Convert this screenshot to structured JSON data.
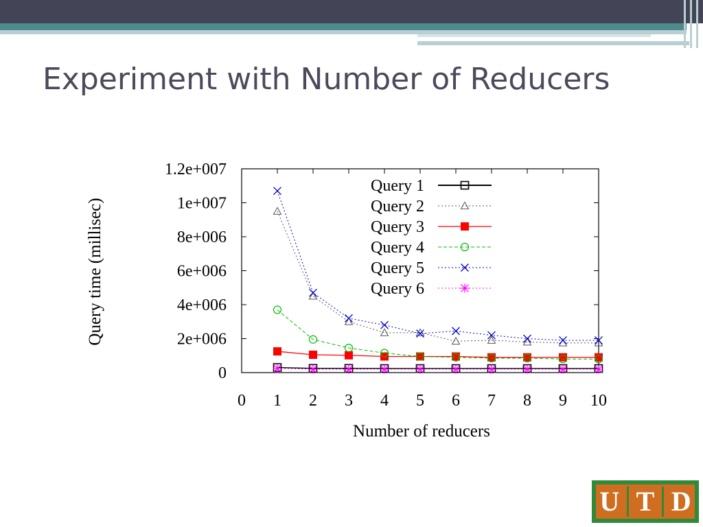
{
  "slide": {
    "title": "Experiment with Number of Reducers",
    "logo_text": "UTD",
    "colors": {
      "header_dark": "#434556",
      "header_teal": "#4e8b8c",
      "header_light": "#b8cfd3",
      "title": "#4a4a5c",
      "logo_green": "#2f8a3a",
      "logo_orange": "#cf6d21"
    }
  },
  "chart_data": {
    "type": "line",
    "title": "",
    "xlabel": "Number of reducers",
    "ylabel": "Query time (millisec)",
    "xlim": [
      0,
      10
    ],
    "ylim": [
      0,
      12000000
    ],
    "xticks": [
      "0",
      "1",
      "2",
      "3",
      "4",
      "5",
      "6",
      "7",
      "8",
      "9",
      "10"
    ],
    "yticks": [
      "0",
      "2e+006",
      "4e+006",
      "6e+006",
      "8e+006",
      "1e+007",
      "1.2e+007"
    ],
    "grid": false,
    "legend_position": "top-right",
    "x": [
      1,
      2,
      3,
      4,
      5,
      6,
      7,
      8,
      9,
      10
    ],
    "series": [
      {
        "name": "Query 1",
        "color": "#000000",
        "marker": "square-open",
        "line": "solid",
        "values": [
          300000,
          250000,
          250000,
          240000,
          240000,
          240000,
          240000,
          240000,
          240000,
          240000
        ]
      },
      {
        "name": "Query 2",
        "color": "#555555",
        "marker": "triangle-open",
        "line": "dotted",
        "values": [
          9500000,
          4500000,
          3000000,
          2350000,
          2350000,
          1850000,
          1900000,
          1800000,
          1750000,
          1750000
        ]
      },
      {
        "name": "Query 3",
        "color": "#ff0000",
        "marker": "square-filled",
        "line": "solid",
        "values": [
          1250000,
          1050000,
          1020000,
          950000,
          950000,
          950000,
          900000,
          900000,
          900000,
          900000
        ]
      },
      {
        "name": "Query 4",
        "color": "#00bb00",
        "marker": "circle-open",
        "line": "dashed",
        "values": [
          3700000,
          1950000,
          1450000,
          1150000,
          950000,
          900000,
          850000,
          850000,
          800000,
          800000
        ]
      },
      {
        "name": "Query 5",
        "color": "#0000cc",
        "marker": "x",
        "line": "dotted",
        "values": [
          10700000,
          4700000,
          3200000,
          2800000,
          2300000,
          2450000,
          2200000,
          2000000,
          1900000,
          1900000
        ]
      },
      {
        "name": "Query 6",
        "color": "#ff00ff",
        "marker": "asterisk",
        "line": "dotted",
        "values": [
          250000,
          200000,
          200000,
          200000,
          200000,
          200000,
          200000,
          200000,
          200000,
          200000
        ]
      }
    ]
  }
}
